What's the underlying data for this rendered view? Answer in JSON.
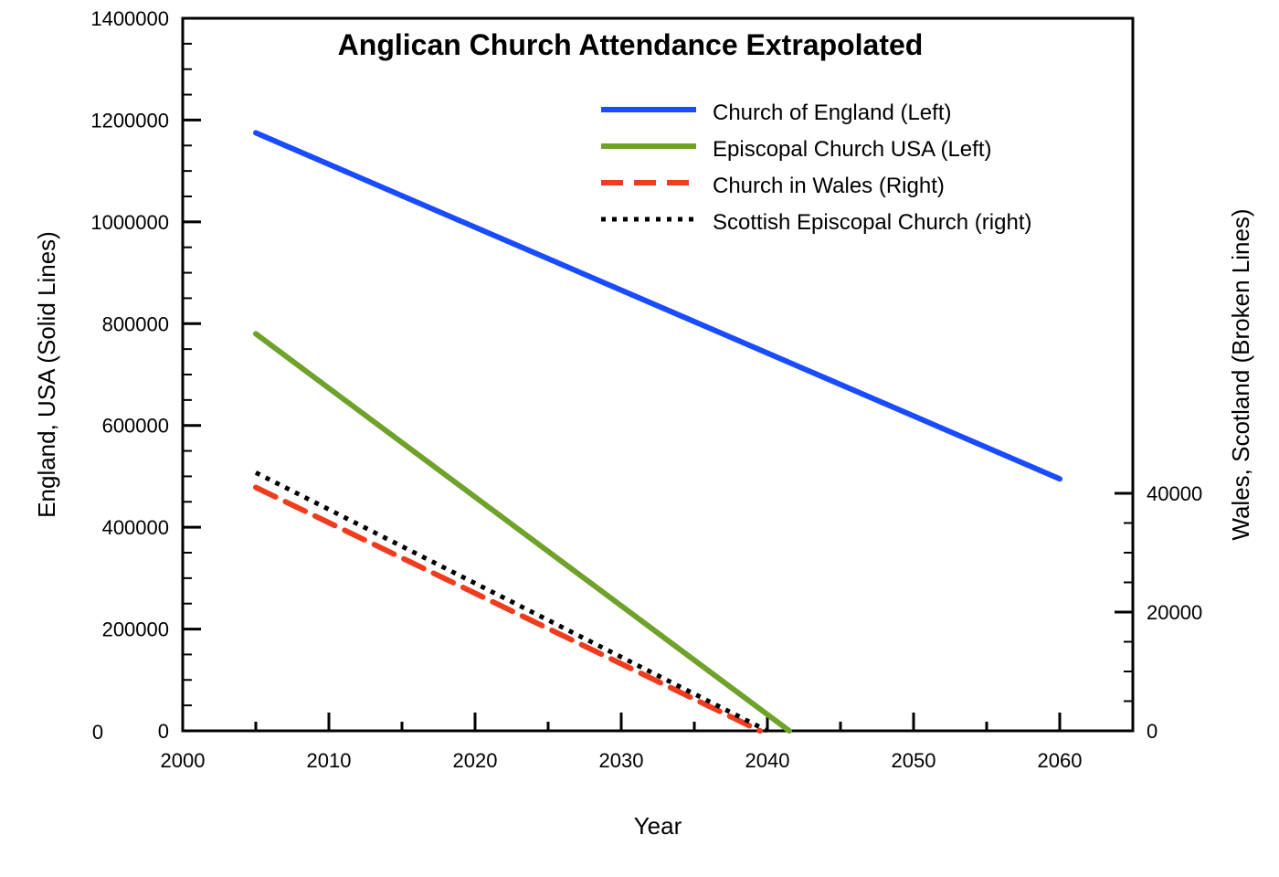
{
  "chart_data": {
    "type": "line",
    "title": "Anglican Church Attendance Extrapolated",
    "xlabel": "Year",
    "ylabel_left": "England, USA (Solid Lines)",
    "ylabel_right": "Wales, Scotland (Broken Lines)",
    "xlim": [
      2000,
      2065
    ],
    "ylim_left": [
      0,
      1400000
    ],
    "ylim_right": [
      0,
      120000
    ],
    "x_ticks": [
      "2000",
      "2010",
      "2020",
      "2030",
      "2040",
      "2050",
      "2060"
    ],
    "y_left_ticks": [
      "0",
      "200000",
      "400000",
      "600000",
      "800000",
      "1000000",
      "1200000",
      "1400000"
    ],
    "y_right_ticks": [
      "0",
      "20000",
      "40000"
    ],
    "x_origin_label": "0",
    "legend_position": "top-right",
    "series": [
      {
        "name": "Church of England (Left)",
        "axis": "left",
        "style": "solid",
        "color": "#1a4cff",
        "x": [
          2005,
          2060
        ],
        "y": [
          1175000,
          495000
        ]
      },
      {
        "name": "Episcopal Church USA (Left)",
        "axis": "left",
        "style": "solid",
        "color": "#6fa22a",
        "x": [
          2005,
          2041.5
        ],
        "y": [
          780000,
          0
        ]
      },
      {
        "name": "Church in Wales (Right)",
        "axis": "right",
        "style": "dashed",
        "color": "#f03c1e",
        "x": [
          2005,
          2039.5
        ],
        "y": [
          41000,
          0
        ]
      },
      {
        "name": "Scottish Episcopal Church (right)",
        "axis": "right",
        "style": "dotted",
        "color": "#000000",
        "x": [
          2005,
          2040
        ],
        "y": [
          43500,
          0
        ]
      }
    ]
  }
}
